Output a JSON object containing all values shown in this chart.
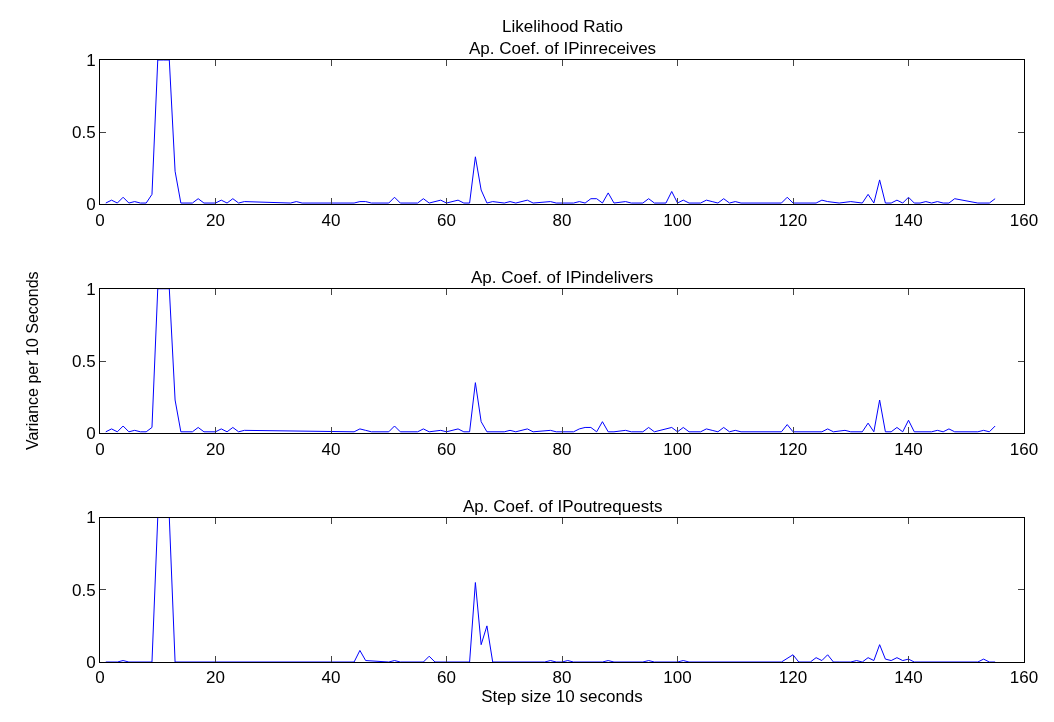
{
  "chart_data": [
    {
      "type": "line",
      "title": "Likelihood Ratio",
      "subtitle": "Ap. Coef. of IPinreceives",
      "ylabel": "Variance per 10 Seconds",
      "xlim": [
        0,
        160
      ],
      "ylim": [
        0,
        1
      ],
      "xticks": [
        0,
        20,
        40,
        60,
        80,
        100,
        120,
        140,
        160
      ],
      "yticks": [
        0,
        0.5,
        1
      ],
      "series": [
        {
          "color": "#0000ff",
          "x": [
            1,
            2,
            3,
            4,
            5,
            6,
            7,
            8,
            9,
            10,
            11,
            12,
            13,
            14,
            16,
            17,
            18,
            20,
            21,
            22,
            23,
            24,
            25,
            33,
            34,
            35,
            44,
            45,
            46,
            47,
            50,
            51,
            52,
            55,
            56,
            57,
            59,
            60,
            62,
            63,
            64,
            65,
            66,
            67,
            68,
            70,
            71,
            72,
            74,
            75,
            78,
            79,
            82,
            83,
            84,
            85,
            86,
            87,
            88,
            89,
            91,
            92,
            94,
            95,
            96,
            98,
            99,
            100,
            101,
            102,
            104,
            105,
            106,
            107,
            108,
            109,
            110,
            111,
            118,
            119,
            120,
            124,
            125,
            126,
            128,
            130,
            132,
            133,
            134,
            135,
            136,
            137,
            138,
            139,
            140,
            141,
            142,
            143,
            144,
            145,
            146,
            147,
            148,
            152,
            154,
            155
          ],
          "values": [
            0.01,
            0.03,
            0.01,
            0.05,
            0.01,
            0.02,
            0.01,
            0.01,
            0.07,
            1,
            1,
            1,
            0.23,
            0.01,
            0.01,
            0.04,
            0.01,
            0.01,
            0.03,
            0.01,
            0.04,
            0.01,
            0.02,
            0.01,
            0.02,
            0.01,
            0.01,
            0.02,
            0.02,
            0.01,
            0.01,
            0.05,
            0.01,
            0.01,
            0.04,
            0.01,
            0.03,
            0.01,
            0.03,
            0.01,
            0.01,
            0.33,
            0.1,
            0.01,
            0.02,
            0.01,
            0.02,
            0.01,
            0.03,
            0.01,
            0.02,
            0.01,
            0.01,
            0.02,
            0.01,
            0.04,
            0.04,
            0.01,
            0.08,
            0.01,
            0.02,
            0.01,
            0.01,
            0.04,
            0.01,
            0.01,
            0.09,
            0.01,
            0.03,
            0.01,
            0.01,
            0.03,
            0.02,
            0.01,
            0.04,
            0.01,
            0.02,
            0.01,
            0.01,
            0.05,
            0.01,
            0.01,
            0.03,
            0.02,
            0.01,
            0.02,
            0.01,
            0.07,
            0.01,
            0.17,
            0.01,
            0.01,
            0.03,
            0.01,
            0.05,
            0.01,
            0.01,
            0.02,
            0.01,
            0.02,
            0.01,
            0.01,
            0.04,
            0.01,
            0.01,
            0.04
          ]
        }
      ]
    },
    {
      "type": "line",
      "title": "Ap. Coef. of IPindelivers",
      "xlim": [
        0,
        160
      ],
      "ylim": [
        0,
        1
      ],
      "xticks": [
        0,
        20,
        40,
        60,
        80,
        100,
        120,
        140,
        160
      ],
      "yticks": [
        0,
        0.5,
        1
      ],
      "series": [
        {
          "color": "#0000ff",
          "x": [
            1,
            2,
            3,
            4,
            5,
            6,
            7,
            8,
            9,
            10,
            11,
            12,
            13,
            14,
            16,
            17,
            18,
            20,
            21,
            22,
            23,
            24,
            25,
            44,
            45,
            46,
            47,
            50,
            51,
            52,
            55,
            56,
            57,
            59,
            60,
            62,
            63,
            64,
            65,
            66,
            67,
            70,
            71,
            72,
            74,
            75,
            78,
            79,
            82,
            83,
            84,
            85,
            86,
            87,
            88,
            89,
            91,
            92,
            94,
            95,
            96,
            99,
            100,
            101,
            102,
            104,
            105,
            106,
            107,
            108,
            109,
            110,
            111,
            118,
            119,
            120,
            125,
            126,
            127,
            129,
            130,
            132,
            133,
            134,
            135,
            136,
            137,
            138,
            139,
            140,
            141,
            144,
            145,
            146,
            147,
            148,
            152,
            153,
            154,
            155
          ],
          "values": [
            0.01,
            0.03,
            0.01,
            0.05,
            0.01,
            0.02,
            0.01,
            0.01,
            0.04,
            1,
            1,
            1,
            0.23,
            0.01,
            0.01,
            0.04,
            0.01,
            0.01,
            0.03,
            0.01,
            0.04,
            0.01,
            0.02,
            0.01,
            0.03,
            0.02,
            0.01,
            0.01,
            0.05,
            0.01,
            0.01,
            0.03,
            0.01,
            0.02,
            0.01,
            0.03,
            0.01,
            0.01,
            0.35,
            0.08,
            0.01,
            0.01,
            0.02,
            0.01,
            0.03,
            0.01,
            0.02,
            0.01,
            0.01,
            0.03,
            0.04,
            0.04,
            0.01,
            0.08,
            0.01,
            0.01,
            0.02,
            0.01,
            0.01,
            0.04,
            0.01,
            0.04,
            0.01,
            0.04,
            0.01,
            0.01,
            0.03,
            0.02,
            0.01,
            0.04,
            0.01,
            0.02,
            0.01,
            0.01,
            0.06,
            0.01,
            0.01,
            0.03,
            0.01,
            0.02,
            0.01,
            0.01,
            0.07,
            0.01,
            0.23,
            0.01,
            0.01,
            0.04,
            0.01,
            0.09,
            0.01,
            0.01,
            0.02,
            0.01,
            0.03,
            0.01,
            0.01,
            0.02,
            0.01,
            0.05
          ]
        }
      ]
    },
    {
      "type": "line",
      "title": "Ap. Coef. of IPoutrequests",
      "xlabel": "Step size 10 seconds",
      "xlim": [
        0,
        160
      ],
      "ylim": [
        0,
        1
      ],
      "xticks": [
        0,
        20,
        40,
        60,
        80,
        100,
        120,
        140,
        160
      ],
      "yticks": [
        0,
        0.5,
        1
      ],
      "series": [
        {
          "color": "#0000ff",
          "x": [
            1,
            3,
            4,
            5,
            9,
            10,
            11,
            12,
            13,
            44,
            45,
            46,
            50,
            51,
            52,
            56,
            57,
            58,
            64,
            65,
            66,
            67,
            68,
            77,
            78,
            79,
            80,
            81,
            82,
            87,
            88,
            89,
            94,
            95,
            96,
            100,
            101,
            102,
            118,
            120,
            121,
            123,
            124,
            125,
            126,
            127,
            128,
            130,
            131,
            132,
            133,
            134,
            135,
            136,
            137,
            138,
            139,
            140,
            141,
            142,
            152,
            153,
            154,
            155
          ],
          "values": [
            0,
            0,
            0.01,
            0,
            0,
            1,
            1,
            1,
            0,
            0,
            0.08,
            0.01,
            0,
            0.01,
            0,
            0,
            0.04,
            0,
            0,
            0.55,
            0.12,
            0.25,
            0,
            0,
            0.01,
            0,
            0,
            0.01,
            0,
            0,
            0.01,
            0,
            0,
            0.01,
            0,
            0,
            0.01,
            0,
            0,
            0.05,
            0,
            0,
            0.03,
            0.01,
            0.05,
            0,
            0,
            0,
            0.01,
            0,
            0.03,
            0.01,
            0.12,
            0.02,
            0.01,
            0.03,
            0.01,
            0.02,
            0,
            0,
            0,
            0.02,
            0,
            0
          ]
        }
      ]
    }
  ]
}
